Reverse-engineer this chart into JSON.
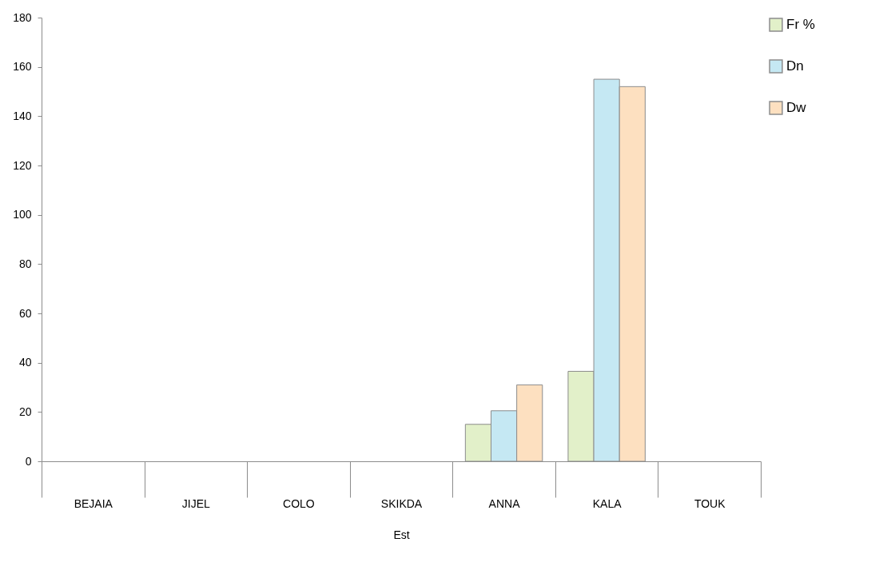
{
  "chart_data": {
    "type": "bar",
    "xlabel": "Est",
    "categories": [
      "BEJAIA",
      "JIJEL",
      "COLO",
      "SKIKDA",
      "ANNA",
      "KALA",
      "TOUK"
    ],
    "series": [
      {
        "name": "Fr %",
        "color": "#e2f0c9",
        "values": [
          null,
          null,
          null,
          null,
          15,
          36.5,
          null
        ]
      },
      {
        "name": "Dn",
        "color": "#c5e8f3",
        "values": [
          null,
          null,
          null,
          null,
          20.5,
          155,
          null
        ]
      },
      {
        "name": "Dw",
        "color": "#fde0c0",
        "values": [
          null,
          null,
          null,
          null,
          31,
          152,
          null
        ]
      }
    ],
    "ylim": [
      0,
      180
    ],
    "yticks": [
      0,
      20,
      40,
      60,
      80,
      100,
      120,
      140,
      160,
      180
    ],
    "grid": false,
    "legend": "right"
  }
}
